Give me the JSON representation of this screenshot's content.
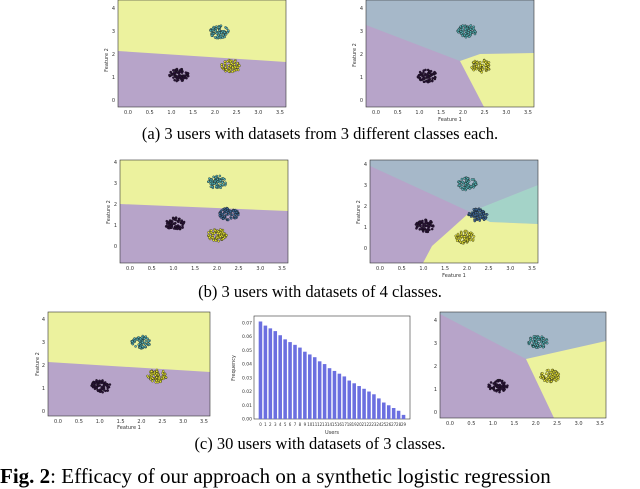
{
  "palette": {
    "yellow": "#ecf29e",
    "purple": "#b7a4c9",
    "blue_grey": "#a6b8c9",
    "teal": "#a4d3c8",
    "cluster_dark": "#2a0f3a",
    "cluster_cyan": "#56b4b8",
    "cluster_yellow": "#e7e534",
    "cluster_blue": "#3f6b9a",
    "bar_blue": "#6b6fe0"
  },
  "captions": {
    "a": "(a) 3 users with datasets from 3 different classes each.",
    "b": "(b) 3 users with datasets of 4 classes.",
    "c": "(c) 30 users with datasets of 3 classes."
  },
  "figure_caption": {
    "label": "Fig. 2",
    "text": ": Efficacy of our approach on a synthetic logistic regression"
  },
  "axes": {
    "feature1": "Feature 1",
    "feature2": "Feature 2",
    "x_ticks": [
      "0.0",
      "0.5",
      "1.0",
      "1.5",
      "2.0",
      "2.5",
      "3.0",
      "3.5"
    ],
    "y_ticks": [
      "0",
      "1",
      "2",
      "3",
      "4"
    ]
  },
  "histogram_labels": {
    "xlabel": "Users",
    "ylabel": "Frequency",
    "y_ticks": [
      "0.00",
      "0.01",
      "0.02",
      "0.03",
      "0.04",
      "0.05",
      "0.06",
      "0.07"
    ]
  },
  "chart_data": [
    {
      "type": "bar",
      "xlabel": "Users",
      "ylabel": "Frequency",
      "ylim": [
        0,
        0.075
      ],
      "categories": [
        "0",
        "1",
        "2",
        "3",
        "4",
        "5",
        "6",
        "7",
        "8",
        "9",
        "10",
        "11",
        "12",
        "13",
        "14",
        "15",
        "16",
        "17",
        "18",
        "19",
        "20",
        "21",
        "22",
        "23",
        "24",
        "25",
        "26",
        "27",
        "28",
        "29"
      ],
      "values": [
        0.071,
        0.068,
        0.066,
        0.064,
        0.061,
        0.058,
        0.056,
        0.054,
        0.052,
        0.049,
        0.047,
        0.045,
        0.042,
        0.04,
        0.037,
        0.035,
        0.033,
        0.031,
        0.028,
        0.026,
        0.024,
        0.022,
        0.02,
        0.018,
        0.015,
        0.012,
        0.01,
        0.008,
        0.006,
        0.003
      ]
    }
  ]
}
